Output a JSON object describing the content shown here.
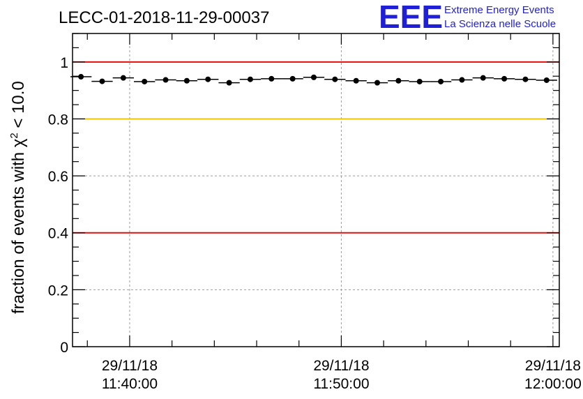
{
  "chart_data": {
    "type": "scatter",
    "title": "LECC-01-2018-11-29-00037",
    "ylabel_pre": "fraction of events with ",
    "ylabel_chi": "χ",
    "ylabel_sup": "2",
    "ylabel_post": " < 10.0",
    "ylim": [
      0,
      1.1
    ],
    "yticks": [
      {
        "v": 0,
        "label": "0"
      },
      {
        "v": 0.2,
        "label": "0.2"
      },
      {
        "v": 0.4,
        "label": "0.4"
      },
      {
        "v": 0.6,
        "label": "0.6"
      },
      {
        "v": 0.8,
        "label": "0.8"
      },
      {
        "v": 1,
        "label": "1"
      }
    ],
    "xlim_minutes": [
      37.3,
      60.3
    ],
    "xticks": [
      {
        "minute": 40,
        "date": "29/11/18",
        "time": "11:40:00"
      },
      {
        "minute": 50,
        "date": "29/11/18",
        "time": "11:50:00"
      },
      {
        "minute": 60,
        "date": "29/11/18",
        "time": "12:00:00"
      }
    ],
    "x_minutes": [
      37.7,
      38.7,
      39.7,
      40.7,
      41.7,
      42.7,
      43.7,
      44.7,
      45.7,
      46.7,
      47.7,
      48.7,
      49.7,
      50.7,
      51.7,
      52.7,
      53.7,
      54.7,
      55.7,
      56.7,
      57.7,
      58.7,
      59.7
    ],
    "values": [
      0.948,
      0.932,
      0.944,
      0.931,
      0.937,
      0.934,
      0.939,
      0.927,
      0.939,
      0.941,
      0.941,
      0.946,
      0.939,
      0.934,
      0.927,
      0.934,
      0.931,
      0.931,
      0.937,
      0.944,
      0.941,
      0.939,
      0.936
    ],
    "bin_width_minutes": 1,
    "reference_lines": [
      {
        "y": 1.0,
        "color": "#e01010"
      },
      {
        "y": 0.8,
        "color": "#f5c400"
      },
      {
        "y": 0.4,
        "color": "#e01010"
      }
    ],
    "grid": true,
    "point_color": "#000000"
  },
  "logo": {
    "big": "EEE",
    "line1": "Extreme Energy Events",
    "line2": "La Scienza nelle Scuole",
    "color": "#1f1fd6"
  }
}
